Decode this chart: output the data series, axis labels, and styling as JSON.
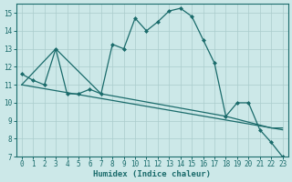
{
  "xlabel": "Humidex (Indice chaleur)",
  "bg_color": "#cce8e8",
  "line_color": "#1a6b6b",
  "grid_color": "#aacccc",
  "xlim": [
    -0.5,
    23.5
  ],
  "ylim": [
    7,
    15.5
  ],
  "x_ticks": [
    0,
    1,
    2,
    3,
    4,
    5,
    6,
    7,
    8,
    9,
    10,
    11,
    12,
    13,
    14,
    15,
    16,
    17,
    18,
    19,
    20,
    21,
    22,
    23
  ],
  "y_ticks": [
    7,
    8,
    9,
    10,
    11,
    12,
    13,
    14,
    15
  ],
  "main_x": [
    0,
    1,
    2,
    3,
    4,
    5,
    6,
    7,
    8,
    9,
    10,
    11,
    12,
    13,
    14,
    15,
    16,
    17,
    18,
    19,
    20,
    21,
    22,
    23
  ],
  "main_y": [
    11.6,
    11.25,
    11.0,
    13.0,
    10.5,
    10.5,
    10.75,
    10.5,
    13.25,
    13.0,
    14.7,
    14.0,
    14.5,
    15.1,
    15.25,
    14.8,
    13.5,
    12.2,
    9.25,
    10.0,
    10.0,
    8.5,
    7.8,
    7.0
  ],
  "trend1_x": [
    0,
    23
  ],
  "trend1_y": [
    11.0,
    8.5
  ],
  "trend2_x": [
    0,
    3,
    7,
    18,
    22,
    23
  ],
  "trend2_y": [
    11.0,
    13.0,
    10.5,
    9.25,
    8.6,
    8.6
  ]
}
